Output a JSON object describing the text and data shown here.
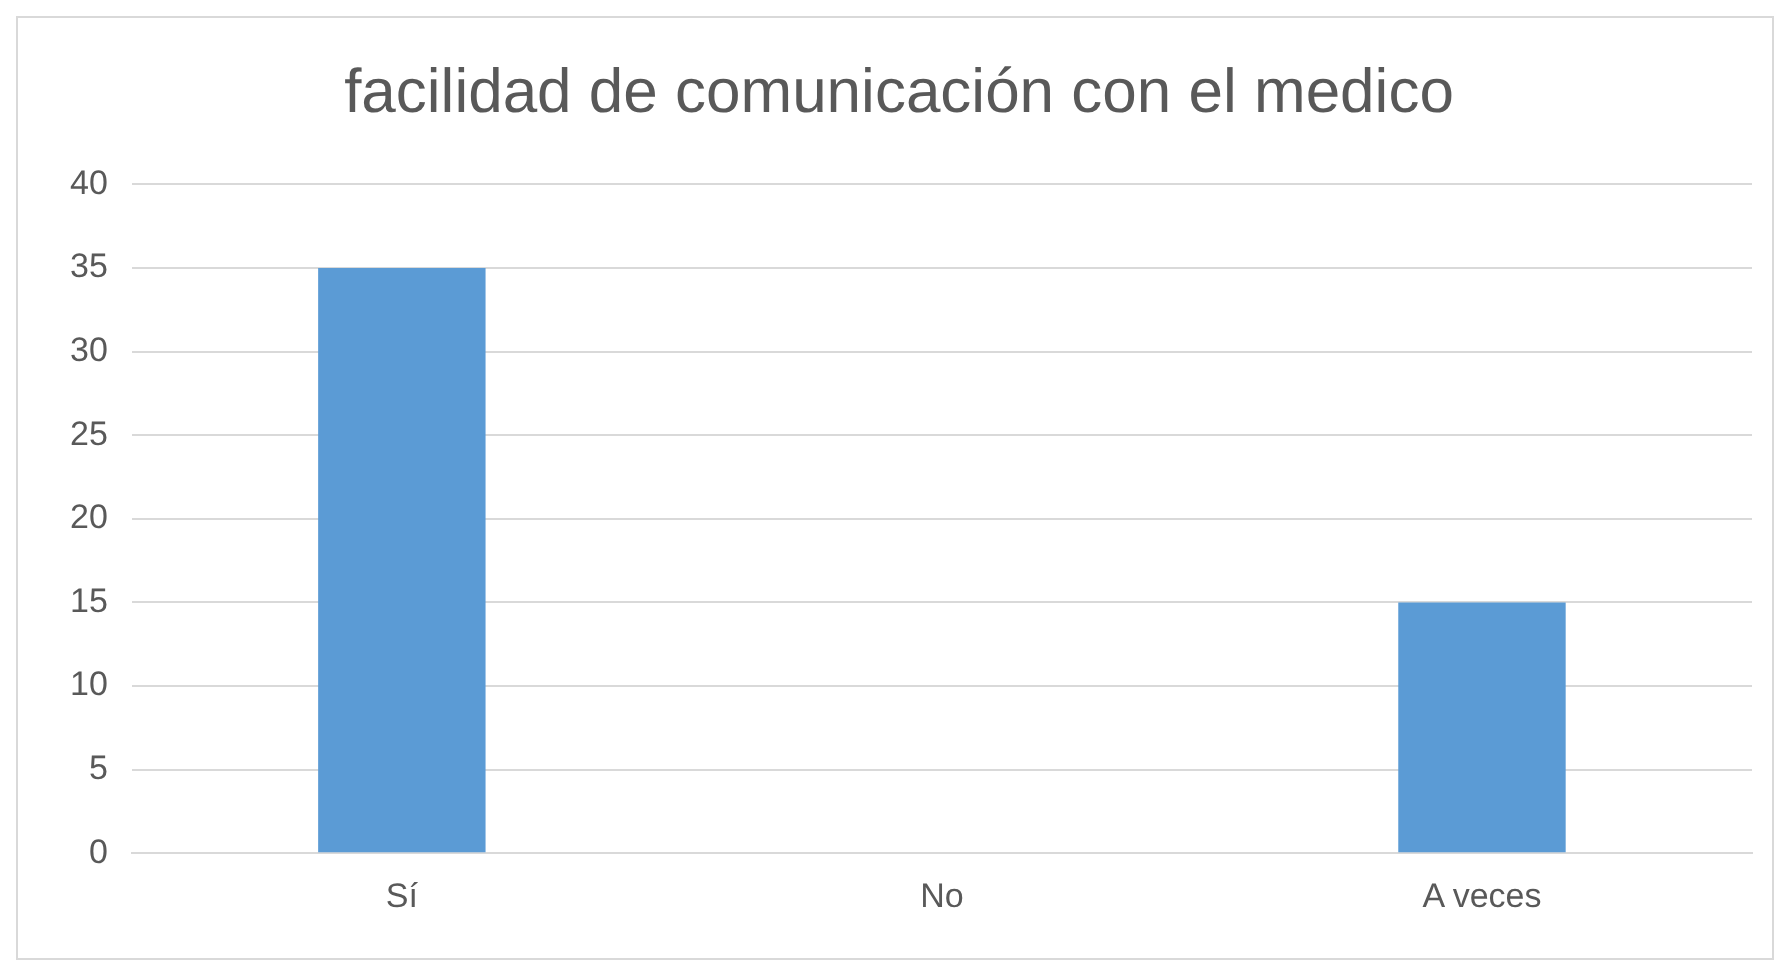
{
  "chart_data": {
    "type": "bar",
    "title": "facilidad de comunicación con el medico",
    "categories": [
      "Sí",
      "No",
      "A veces"
    ],
    "values": [
      35,
      0,
      15
    ],
    "color": "#5b9bd5",
    "ylim": [
      0,
      40
    ],
    "yticks": [
      0,
      5,
      10,
      15,
      20,
      25,
      30,
      35,
      40
    ],
    "grid": "y",
    "legend": false
  }
}
